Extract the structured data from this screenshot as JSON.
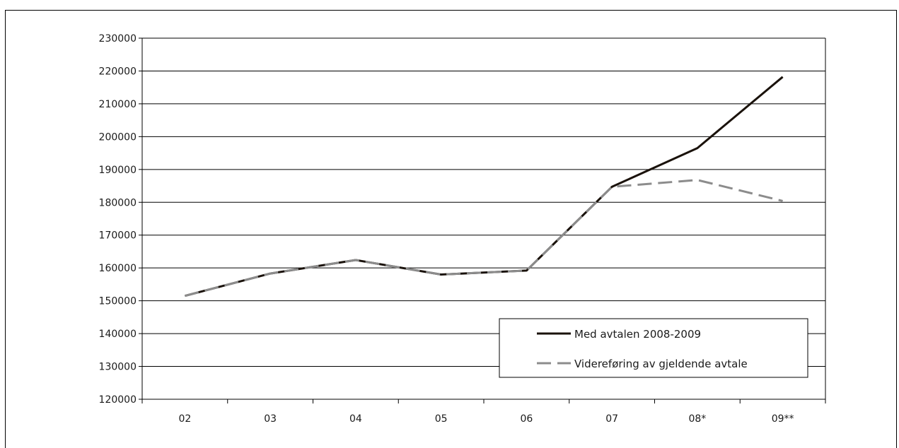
{
  "chart_data": {
    "type": "line",
    "categories": [
      "02",
      "03",
      "04",
      "05",
      "06",
      "07",
      "08*",
      "09**"
    ],
    "ylim": [
      120000,
      230000
    ],
    "yticks": [
      120000,
      130000,
      140000,
      150000,
      160000,
      170000,
      180000,
      190000,
      200000,
      210000,
      220000,
      230000
    ],
    "grid": true,
    "legend_position": "bottom-right",
    "series": [
      {
        "name": "Med avtalen 2008-2009",
        "color": "#1a120b",
        "style": "solid",
        "values": [
          151500,
          158300,
          162400,
          158000,
          159200,
          184700,
          196500,
          218200
        ]
      },
      {
        "name": "Videreføring av gjeldende avtale",
        "color": "#8c8c8c",
        "style": "dashed",
        "values": [
          151500,
          158300,
          162400,
          158000,
          159200,
          184700,
          186800,
          180400
        ]
      }
    ]
  }
}
